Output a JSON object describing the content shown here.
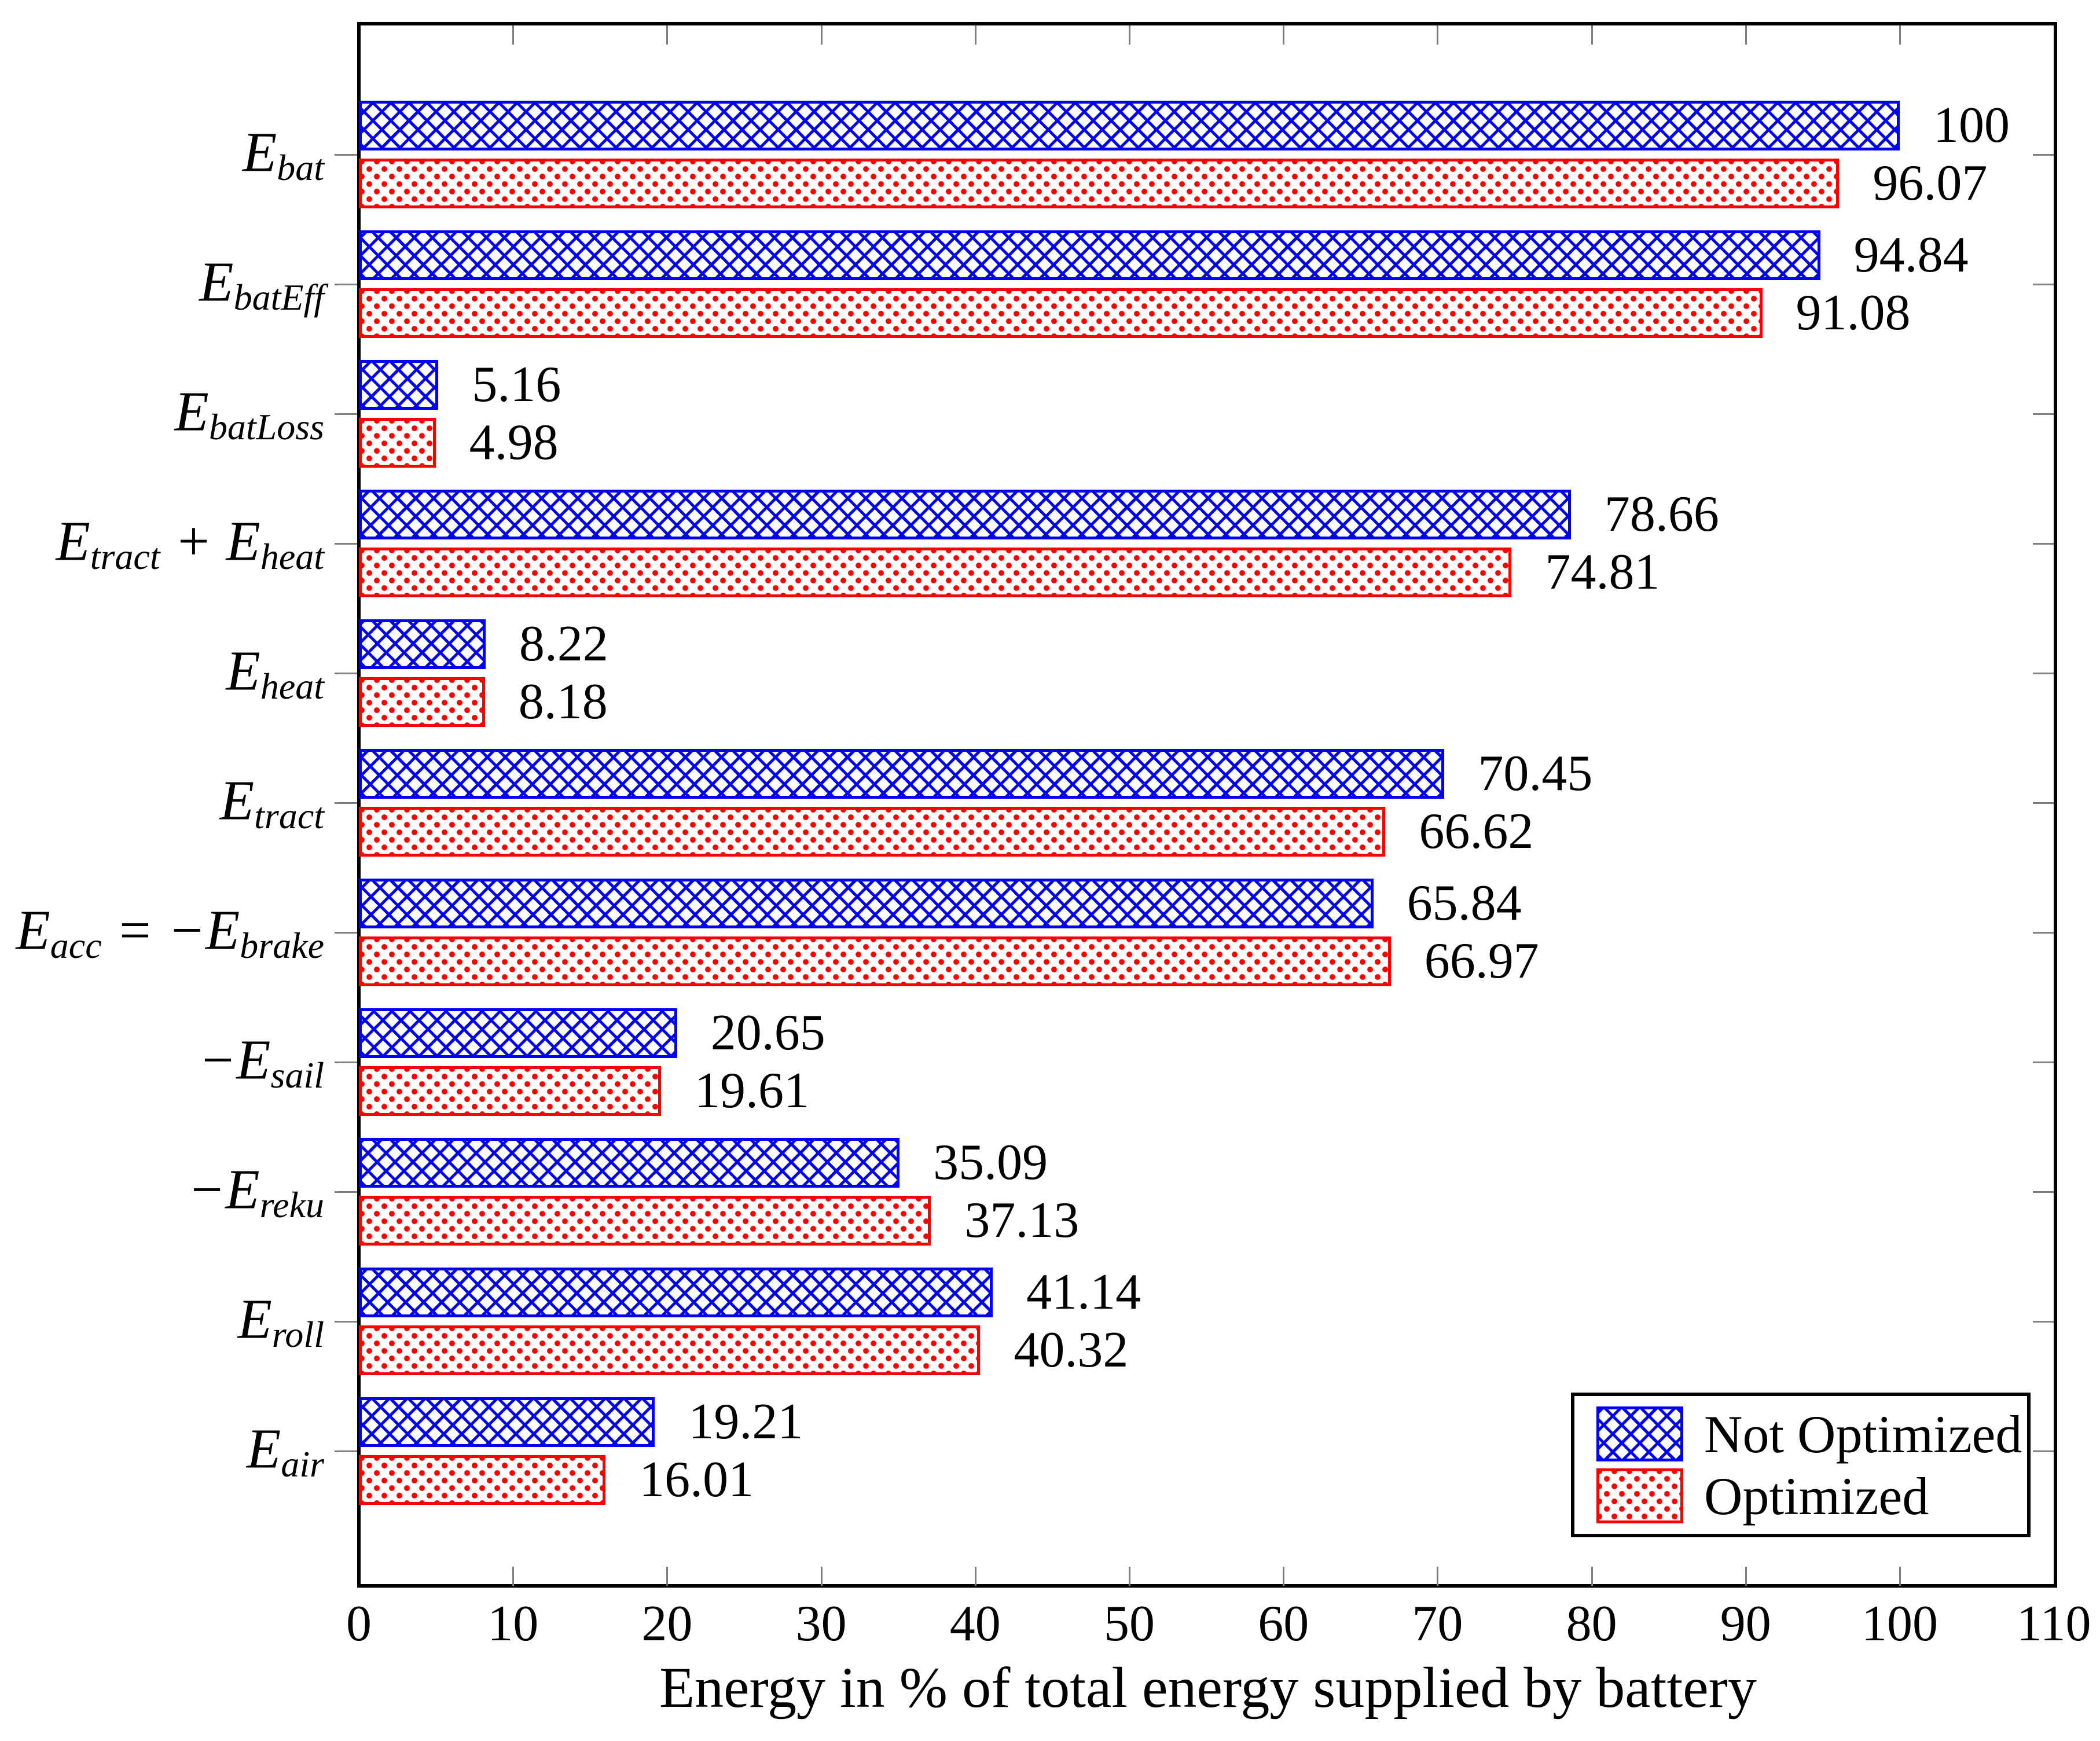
{
  "chart_data": {
    "type": "bar",
    "orientation": "horizontal",
    "title": "",
    "xlabel": "Energy in % of total energy supplied by battery",
    "ylabel": "",
    "xlim": [
      0,
      110
    ],
    "xticks": [
      0,
      10,
      20,
      30,
      40,
      50,
      60,
      70,
      80,
      90,
      100,
      110
    ],
    "grid": false,
    "legend_position": "bottom-right",
    "value_labels_shown": true,
    "categories": [
      "E_{bat}",
      "E_{batEff}",
      "E_{batLoss}",
      "E_{tract} + E_{heat}",
      "E_{heat}",
      "E_{tract}",
      "E_{acc} = −E_{brake}",
      "−E_{sail}",
      "−E_{reku}",
      "E_{roll}",
      "E_{air}"
    ],
    "series": [
      {
        "name": "Not Optimized",
        "color": "#0000f5",
        "pattern": "crosshatch",
        "values": [
          100,
          94.84,
          5.16,
          78.66,
          8.22,
          70.45,
          65.84,
          20.65,
          35.09,
          41.14,
          19.21
        ]
      },
      {
        "name": "Optimized",
        "color": "#ff0000",
        "pattern": "dots",
        "values": [
          96.07,
          91.08,
          4.98,
          74.81,
          8.18,
          66.62,
          66.97,
          19.61,
          37.13,
          40.32,
          16.01
        ]
      }
    ],
    "colors": {
      "axis_frame": "#000000",
      "tick_marks": "#808080",
      "text": "#000000",
      "background": "#ffffff"
    }
  }
}
